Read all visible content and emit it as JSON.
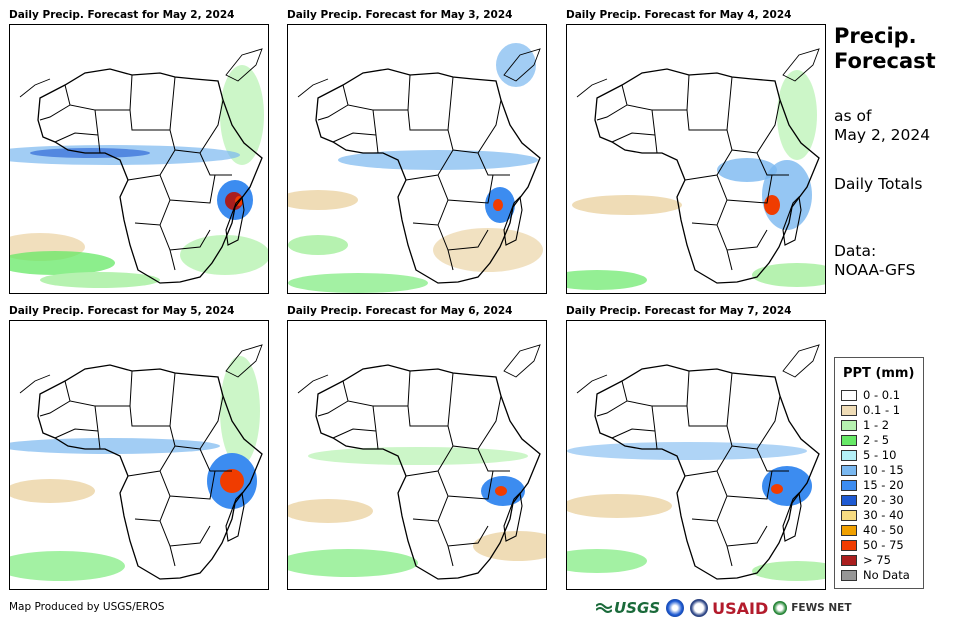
{
  "panels": [
    {
      "title": "Daily Precip. Forecast for May 2, 2024"
    },
    {
      "title": "Daily Precip. Forecast for May 3, 2024"
    },
    {
      "title": "Daily Precip. Forecast for May 4, 2024"
    },
    {
      "title": "Daily Precip. Forecast for May 5, 2024"
    },
    {
      "title": "Daily Precip. Forecast for May 6, 2024"
    },
    {
      "title": "Daily Precip. Forecast for May 7, 2024"
    }
  ],
  "side": {
    "title_line1": "Precip.",
    "title_line2": "Forecast",
    "asof_line1": "as of",
    "asof_line2": "May 2, 2024",
    "daily": "Daily Totals",
    "data_line1": "Data:",
    "data_line2": "NOAA-GFS"
  },
  "legend": {
    "title": "PPT (mm)",
    "items": [
      {
        "label": "0 - 0.1",
        "color": "#ffffff"
      },
      {
        "label": "0.1 - 1",
        "color": "#efdcb6"
      },
      {
        "label": "1 - 2",
        "color": "#b6f2b0"
      },
      {
        "label": "2 - 5",
        "color": "#66e866"
      },
      {
        "label": "5 - 10",
        "color": "#b4f0f8"
      },
      {
        "label": "10 - 15",
        "color": "#7ab8f0"
      },
      {
        "label": "15 - 20",
        "color": "#3c8cf0"
      },
      {
        "label": "20 - 30",
        "color": "#1e5ad2"
      },
      {
        "label": "30 - 40",
        "color": "#f8dc82"
      },
      {
        "label": "40 - 50",
        "color": "#f0a000"
      },
      {
        "label": "50 - 75",
        "color": "#f03c00"
      },
      {
        "label": "> 75",
        "color": "#aa1e1e"
      },
      {
        "label": "No Data",
        "color": "#969696"
      }
    ]
  },
  "footer": {
    "credit": "Map Produced by USGS/EROS",
    "logo_usgs": "USGS",
    "logo_usaid": "USAID",
    "logo_fews": "FEWS NET"
  }
}
